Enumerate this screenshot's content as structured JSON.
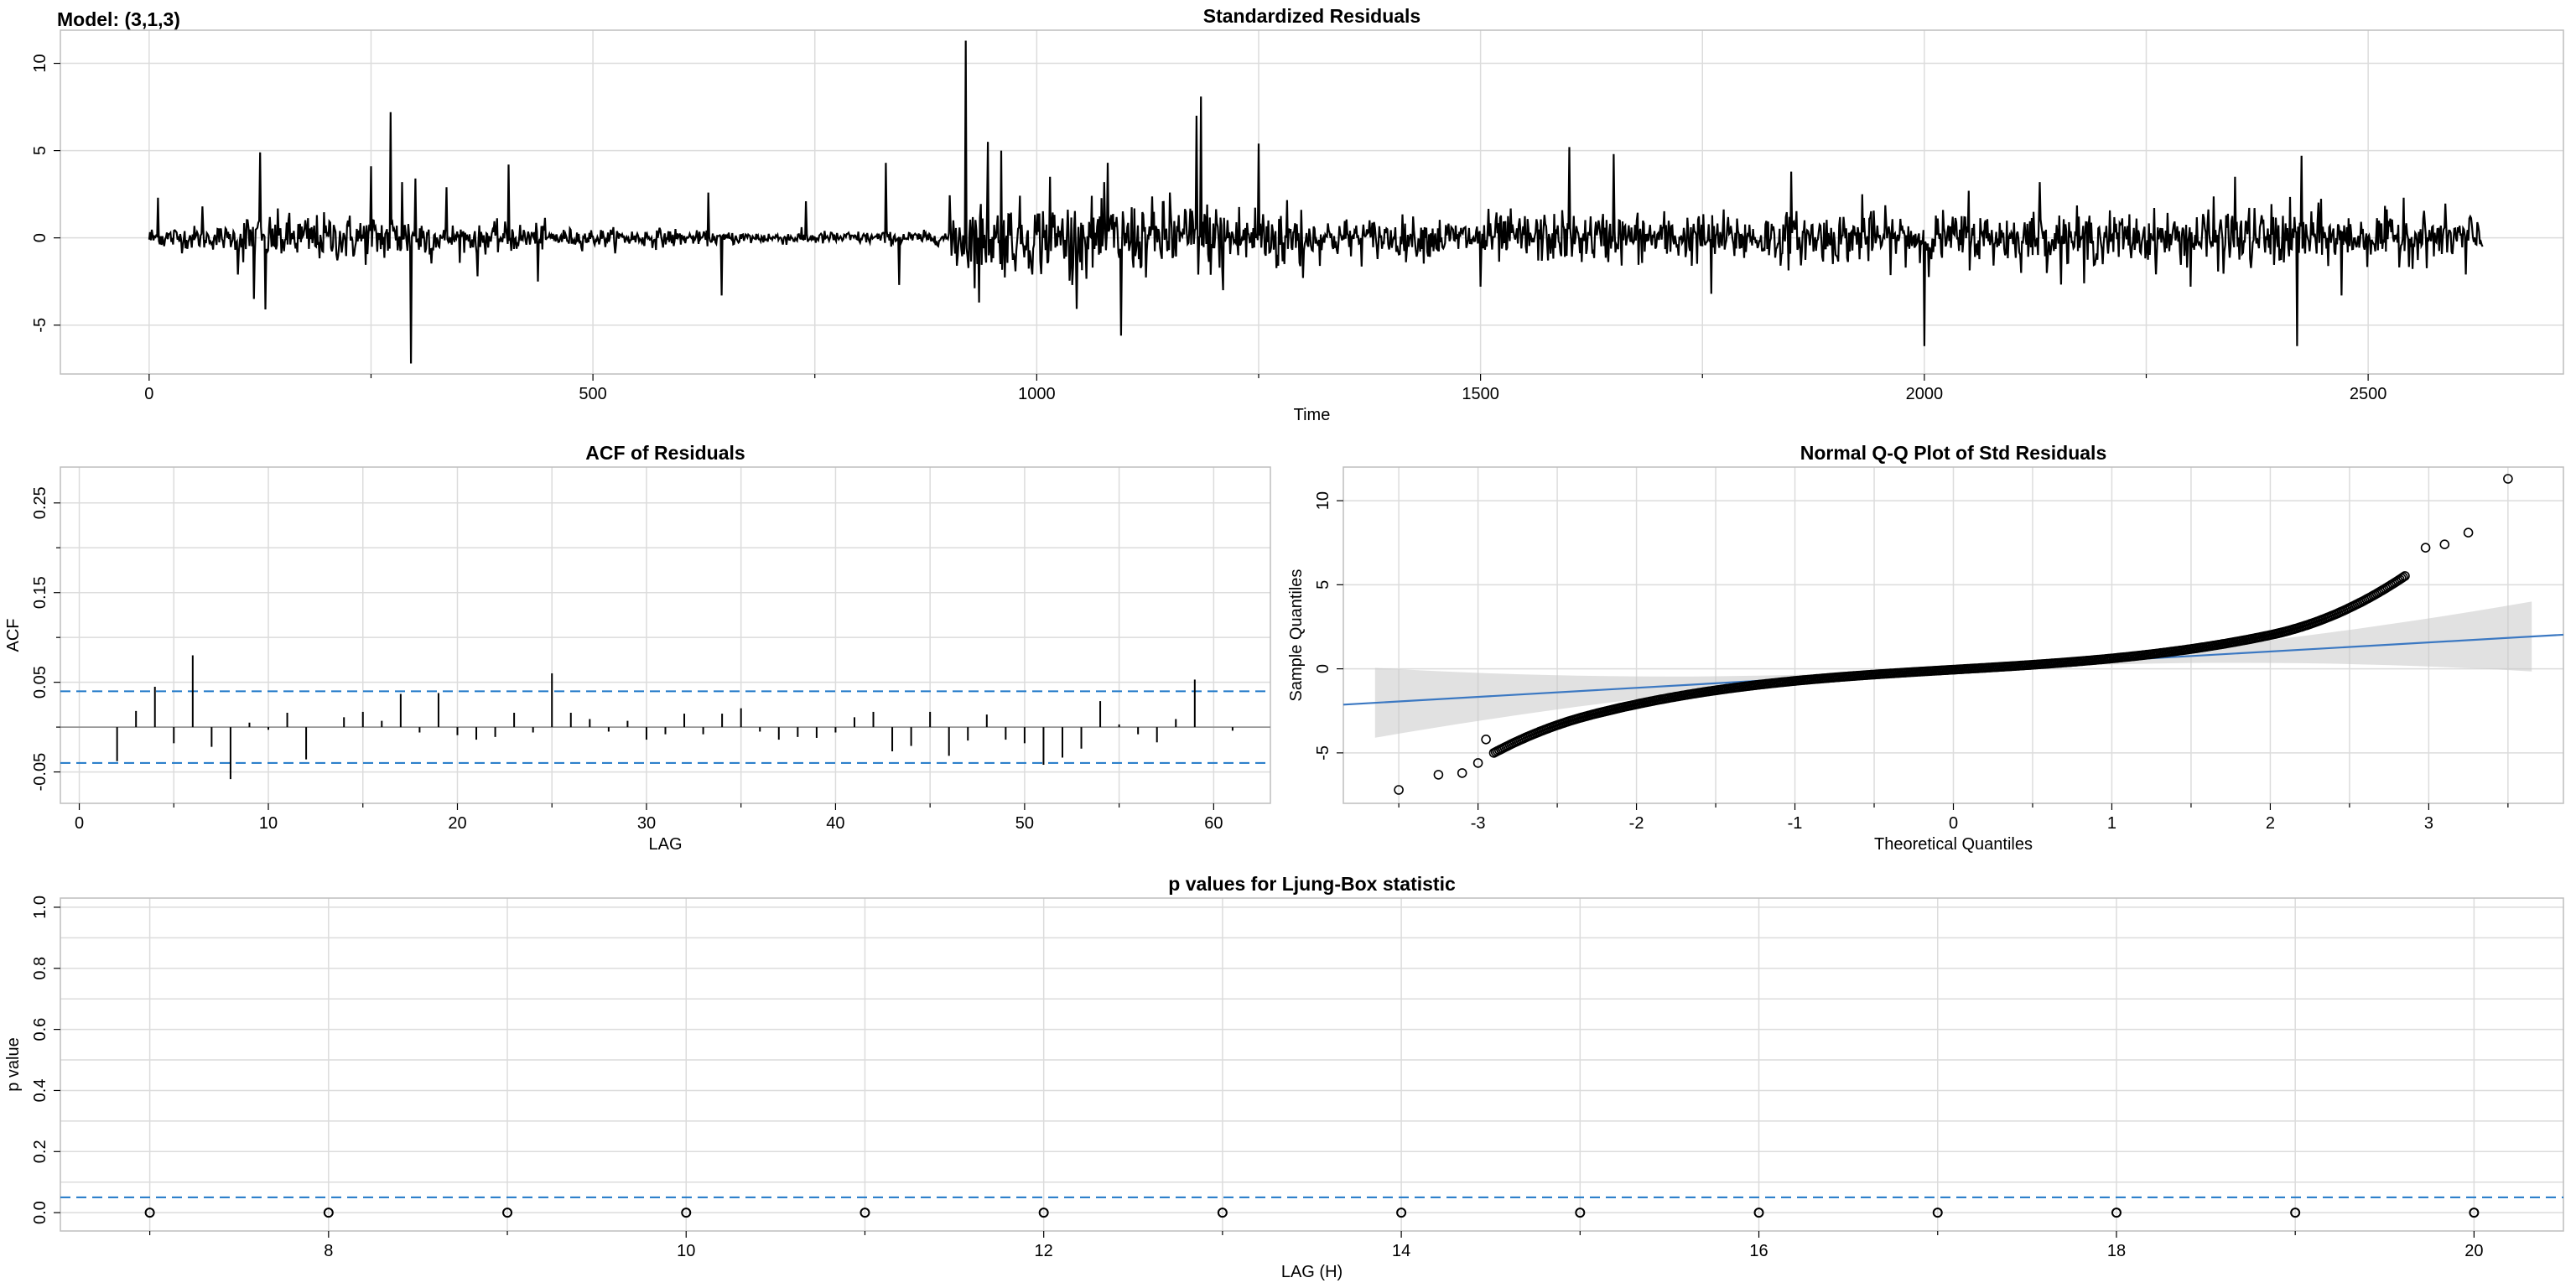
{
  "model_label": "Model: (3,1,3)",
  "colors": {
    "line": "#000000",
    "grid": "#dcdcdc",
    "frame": "#bebebe",
    "ci": "#1f78c8",
    "qq_line": "#3b78c2",
    "qq_band": "#c8c8c8"
  },
  "chart_data": [
    {
      "type": "line",
      "title": "Standardized Residuals",
      "xlabel": "Time",
      "ylabel": "",
      "xlim": [
        -100,
        2720
      ],
      "ylim": [
        -7.8,
        11.9
      ],
      "x_ticks": [
        0,
        500,
        1000,
        1500,
        2000,
        2500
      ],
      "y_ticks": [
        -5,
        0,
        5,
        10
      ],
      "n": 2630,
      "spikes": [
        [
          10,
          2.3
        ],
        [
          60,
          1.8
        ],
        [
          100,
          -2.1
        ],
        [
          118,
          -3.5
        ],
        [
          125,
          4.9
        ],
        [
          131,
          -4.1
        ],
        [
          250,
          4.1
        ],
        [
          272,
          7.2
        ],
        [
          285,
          3.2
        ],
        [
          295,
          -7.2
        ],
        [
          300,
          3.4
        ],
        [
          335,
          2.9
        ],
        [
          370,
          -2.2
        ],
        [
          405,
          4.2
        ],
        [
          438,
          -2.5
        ],
        [
          630,
          2.6
        ],
        [
          645,
          -3.3
        ],
        [
          740,
          2.1
        ],
        [
          830,
          4.3
        ],
        [
          845,
          -2.7
        ],
        [
          920,
          11.3
        ],
        [
          935,
          -3.7
        ],
        [
          945,
          5.5
        ],
        [
          960,
          5.0
        ],
        [
          1015,
          3.5
        ],
        [
          1040,
          -2.7
        ],
        [
          1080,
          4.3
        ],
        [
          1095,
          -5.6
        ],
        [
          1150,
          2.6
        ],
        [
          1180,
          7.0
        ],
        [
          1185,
          8.1
        ],
        [
          1210,
          -3.0
        ],
        [
          1250,
          5.4
        ],
        [
          1300,
          -2.3
        ],
        [
          1500,
          -2.8
        ],
        [
          1600,
          5.2
        ],
        [
          1650,
          4.8
        ],
        [
          1760,
          -3.2
        ],
        [
          1850,
          3.8
        ],
        [
          1930,
          2.5
        ],
        [
          2000,
          -6.2
        ],
        [
          2050,
          2.7
        ],
        [
          2130,
          3.2
        ],
        [
          2180,
          -2.6
        ],
        [
          2300,
          -2.8
        ],
        [
          2350,
          3.5
        ],
        [
          2420,
          -6.2
        ],
        [
          2425,
          4.7
        ],
        [
          2470,
          -3.3
        ],
        [
          2540,
          2.3
        ],
        [
          2610,
          -2.1
        ]
      ]
    },
    {
      "type": "bar",
      "title": "ACF of Residuals",
      "xlabel": "LAG",
      "ylabel": "ACF",
      "xlim": [
        -1,
        63
      ],
      "ylim": [
        -0.085,
        0.29
      ],
      "x_ticks": [
        0,
        10,
        20,
        30,
        40,
        50,
        60
      ],
      "y_ticks": [
        -0.05,
        0.05,
        0.15,
        0.25
      ],
      "ci": 0.04,
      "lags": [
        1,
        2,
        3,
        4,
        5,
        6,
        7,
        8,
        9,
        10,
        11,
        12,
        13,
        14,
        15,
        16,
        17,
        18,
        19,
        20,
        21,
        22,
        23,
        24,
        25,
        26,
        27,
        28,
        29,
        30,
        31,
        32,
        33,
        34,
        35,
        36,
        37,
        38,
        39,
        40,
        41,
        42,
        43,
        44,
        45,
        46,
        47,
        48,
        49,
        50,
        51,
        52,
        53,
        54,
        55,
        56,
        57,
        58,
        59,
        60,
        61
      ],
      "values": [
        0.0,
        -0.038,
        0.018,
        0.045,
        -0.018,
        0.08,
        -0.022,
        -0.058,
        0.005,
        -0.003,
        0.016,
        -0.036,
        0.0,
        0.011,
        0.017,
        0.007,
        0.037,
        -0.006,
        0.038,
        -0.009,
        -0.014,
        -0.011,
        0.016,
        -0.006,
        0.06,
        0.016,
        0.009,
        -0.005,
        0.007,
        -0.014,
        -0.008,
        0.015,
        -0.008,
        0.015,
        0.021,
        -0.005,
        -0.014,
        -0.011,
        -0.012,
        -0.006,
        0.011,
        0.017,
        -0.027,
        -0.021,
        0.017,
        -0.032,
        -0.015,
        0.014,
        -0.014,
        -0.018,
        -0.042,
        -0.034,
        -0.024,
        0.029,
        0.003,
        -0.008,
        -0.017,
        0.009,
        0.053,
        0.0,
        -0.004
      ]
    },
    {
      "type": "scatter",
      "title": "Normal Q-Q Plot of Std Residuals",
      "xlabel": "Theoretical Quantiles",
      "ylabel": "Sample Quantiles",
      "xlim": [
        -3.85,
        3.85
      ],
      "ylim": [
        -8.0,
        12.0
      ],
      "x_ticks": [
        -3,
        -2,
        -1,
        0,
        1,
        2,
        3
      ],
      "y_ticks": [
        -5,
        0,
        5,
        10
      ],
      "reference_line": {
        "intercept": -0.05,
        "slope": 0.54
      },
      "high_tail": [
        [
          3.5,
          11.3
        ],
        [
          3.25,
          8.1
        ],
        [
          3.1,
          7.4
        ],
        [
          2.98,
          7.2
        ]
      ],
      "low_tail": [
        [
          -3.5,
          -7.2
        ],
        [
          -3.25,
          -6.3
        ],
        [
          -3.1,
          -6.2
        ],
        [
          -3.0,
          -5.6
        ],
        [
          -2.95,
          -4.2
        ]
      ]
    },
    {
      "type": "scatter",
      "title": "p values for Ljung-Box statistic",
      "xlabel": "LAG (H)",
      "ylabel": "p value",
      "xlim": [
        6.5,
        20.5
      ],
      "ylim": [
        -0.06,
        1.03
      ],
      "x_ticks": [
        8,
        10,
        12,
        14,
        16,
        18,
        20
      ],
      "y_ticks": [
        0.0,
        0.2,
        0.4,
        0.6,
        0.8,
        1.0
      ],
      "threshold": 0.05,
      "x": [
        7,
        8,
        9,
        10,
        11,
        12,
        13,
        14,
        15,
        16,
        17,
        18,
        19,
        20
      ],
      "y": [
        0,
        0,
        0,
        0,
        0,
        0,
        0,
        0,
        0,
        0,
        0,
        0,
        0,
        0
      ]
    }
  ]
}
